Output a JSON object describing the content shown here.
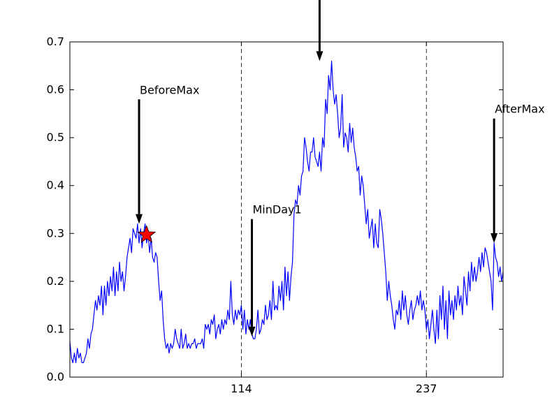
{
  "chart_data": {
    "type": "line",
    "title": "",
    "xlabel": "",
    "ylabel": "",
    "xlim": [
      0,
      288
    ],
    "ylim": [
      0,
      0.7
    ],
    "yticks": [
      "0.0",
      "0.1",
      "0.2",
      "0.3",
      "0.4",
      "0.5",
      "0.6",
      "0.7"
    ],
    "xticks": [
      {
        "value": 114,
        "label": "114"
      },
      {
        "value": 237,
        "label": "237"
      }
    ],
    "vlines": [
      114,
      237
    ],
    "grid": false,
    "series": [
      {
        "color": "#0000ff",
        "points": [
          [
            0,
            0.075
          ],
          [
            1,
            0.04
          ],
          [
            2,
            0.03
          ],
          [
            3,
            0.05
          ],
          [
            4,
            0.03
          ],
          [
            5,
            0.06
          ],
          [
            6,
            0.04
          ],
          [
            7,
            0.05
          ],
          [
            8,
            0.03
          ],
          [
            9,
            0.03
          ],
          [
            10,
            0.04
          ],
          [
            11,
            0.05
          ],
          [
            12,
            0.08
          ],
          [
            13,
            0.06
          ],
          [
            14,
            0.09
          ],
          [
            15,
            0.1
          ],
          [
            16,
            0.13
          ],
          [
            17,
            0.16
          ],
          [
            18,
            0.14
          ],
          [
            19,
            0.17
          ],
          [
            20,
            0.15
          ],
          [
            21,
            0.19
          ],
          [
            22,
            0.13
          ],
          [
            23,
            0.19
          ],
          [
            24,
            0.15
          ],
          [
            25,
            0.2
          ],
          [
            26,
            0.17
          ],
          [
            27,
            0.21
          ],
          [
            28,
            0.18
          ],
          [
            29,
            0.23
          ],
          [
            30,
            0.17
          ],
          [
            31,
            0.22
          ],
          [
            32,
            0.18
          ],
          [
            33,
            0.24
          ],
          [
            34,
            0.2
          ],
          [
            35,
            0.22
          ],
          [
            36,
            0.18
          ],
          [
            37,
            0.21
          ],
          [
            38,
            0.25
          ],
          [
            39,
            0.27
          ],
          [
            40,
            0.29
          ],
          [
            41,
            0.26
          ],
          [
            42,
            0.31
          ],
          [
            43,
            0.3
          ],
          [
            44,
            0.29
          ],
          [
            45,
            0.32
          ],
          [
            46,
            0.28
          ],
          [
            47,
            0.31
          ],
          [
            48,
            0.27
          ],
          [
            49,
            0.3
          ],
          [
            50,
            0.32
          ],
          [
            51,
            0.28
          ],
          [
            52,
            0.3
          ],
          [
            53,
            0.26
          ],
          [
            54,
            0.29
          ],
          [
            55,
            0.25
          ],
          [
            56,
            0.24
          ],
          [
            57,
            0.26
          ],
          [
            58,
            0.25
          ],
          [
            59,
            0.2
          ],
          [
            60,
            0.16
          ],
          [
            61,
            0.18
          ],
          [
            62,
            0.12
          ],
          [
            63,
            0.08
          ],
          [
            64,
            0.06
          ],
          [
            65,
            0.07
          ],
          [
            66,
            0.05
          ],
          [
            67,
            0.07
          ],
          [
            68,
            0.06
          ],
          [
            69,
            0.07
          ],
          [
            70,
            0.1
          ],
          [
            71,
            0.08
          ],
          [
            72,
            0.07
          ],
          [
            73,
            0.06
          ],
          [
            74,
            0.1
          ],
          [
            75,
            0.06
          ],
          [
            76,
            0.07
          ],
          [
            77,
            0.09
          ],
          [
            78,
            0.06
          ],
          [
            79,
            0.07
          ],
          [
            80,
            0.06
          ],
          [
            81,
            0.07
          ],
          [
            82,
            0.07
          ],
          [
            83,
            0.08
          ],
          [
            84,
            0.06
          ],
          [
            85,
            0.07
          ],
          [
            86,
            0.07
          ],
          [
            87,
            0.07
          ],
          [
            88,
            0.08
          ],
          [
            89,
            0.06
          ],
          [
            90,
            0.11
          ],
          [
            91,
            0.1
          ],
          [
            92,
            0.11
          ],
          [
            93,
            0.09
          ],
          [
            94,
            0.12
          ],
          [
            95,
            0.11
          ],
          [
            96,
            0.13
          ],
          [
            97,
            0.08
          ],
          [
            98,
            0.1
          ],
          [
            99,
            0.11
          ],
          [
            100,
            0.09
          ],
          [
            101,
            0.12
          ],
          [
            102,
            0.1
          ],
          [
            103,
            0.12
          ],
          [
            104,
            0.11
          ],
          [
            105,
            0.14
          ],
          [
            106,
            0.12
          ],
          [
            107,
            0.2
          ],
          [
            108,
            0.13
          ],
          [
            109,
            0.11
          ],
          [
            110,
            0.14
          ],
          [
            111,
            0.12
          ],
          [
            112,
            0.14
          ],
          [
            113,
            0.13
          ],
          [
            114,
            0.15
          ],
          [
            115,
            0.1
          ],
          [
            116,
            0.14
          ],
          [
            117,
            0.09
          ],
          [
            118,
            0.12
          ],
          [
            119,
            0.1
          ],
          [
            120,
            0.12
          ],
          [
            121,
            0.09
          ],
          [
            122,
            0.08
          ],
          [
            123,
            0.08
          ],
          [
            124,
            0.1
          ],
          [
            125,
            0.14
          ],
          [
            126,
            0.09
          ],
          [
            127,
            0.1
          ],
          [
            128,
            0.12
          ],
          [
            129,
            0.11
          ],
          [
            130,
            0.15
          ],
          [
            131,
            0.12
          ],
          [
            132,
            0.13
          ],
          [
            133,
            0.16
          ],
          [
            134,
            0.12
          ],
          [
            135,
            0.2
          ],
          [
            136,
            0.14
          ],
          [
            137,
            0.15
          ],
          [
            138,
            0.14
          ],
          [
            139,
            0.19
          ],
          [
            140,
            0.16
          ],
          [
            141,
            0.2
          ],
          [
            142,
            0.14
          ],
          [
            143,
            0.23
          ],
          [
            144,
            0.17
          ],
          [
            145,
            0.22
          ],
          [
            146,
            0.16
          ],
          [
            147,
            0.21
          ],
          [
            148,
            0.24
          ],
          [
            149,
            0.34
          ],
          [
            150,
            0.37
          ],
          [
            151,
            0.36
          ],
          [
            152,
            0.4
          ],
          [
            153,
            0.38
          ],
          [
            154,
            0.42
          ],
          [
            155,
            0.43
          ],
          [
            156,
            0.5
          ],
          [
            157,
            0.48
          ],
          [
            158,
            0.45
          ],
          [
            159,
            0.43
          ],
          [
            160,
            0.47
          ],
          [
            161,
            0.47
          ],
          [
            162,
            0.5
          ],
          [
            163,
            0.46
          ],
          [
            164,
            0.45
          ],
          [
            165,
            0.44
          ],
          [
            166,
            0.47
          ],
          [
            167,
            0.43
          ],
          [
            168,
            0.5
          ],
          [
            169,
            0.48
          ],
          [
            170,
            0.58
          ],
          [
            171,
            0.55
          ],
          [
            172,
            0.63
          ],
          [
            173,
            0.6
          ],
          [
            174,
            0.66
          ],
          [
            175,
            0.6
          ],
          [
            176,
            0.57
          ],
          [
            177,
            0.59
          ],
          [
            178,
            0.55
          ],
          [
            179,
            0.5
          ],
          [
            180,
            0.52
          ],
          [
            181,
            0.59
          ],
          [
            182,
            0.48
          ],
          [
            183,
            0.51
          ],
          [
            184,
            0.5
          ],
          [
            185,
            0.47
          ],
          [
            186,
            0.53
          ],
          [
            187,
            0.49
          ],
          [
            188,
            0.52
          ],
          [
            189,
            0.48
          ],
          [
            190,
            0.46
          ],
          [
            191,
            0.43
          ],
          [
            192,
            0.44
          ],
          [
            193,
            0.38
          ],
          [
            194,
            0.42
          ],
          [
            195,
            0.4
          ],
          [
            196,
            0.36
          ],
          [
            197,
            0.32
          ],
          [
            198,
            0.35
          ],
          [
            199,
            0.29
          ],
          [
            200,
            0.31
          ],
          [
            201,
            0.33
          ],
          [
            202,
            0.27
          ],
          [
            203,
            0.32
          ],
          [
            204,
            0.28
          ],
          [
            205,
            0.27
          ],
          [
            206,
            0.35
          ],
          [
            207,
            0.33
          ],
          [
            208,
            0.3
          ],
          [
            209,
            0.26
          ],
          [
            210,
            0.22
          ],
          [
            211,
            0.16
          ],
          [
            212,
            0.2
          ],
          [
            213,
            0.17
          ],
          [
            214,
            0.15
          ],
          [
            215,
            0.12
          ],
          [
            216,
            0.1
          ],
          [
            217,
            0.14
          ],
          [
            218,
            0.13
          ],
          [
            219,
            0.16
          ],
          [
            220,
            0.12
          ],
          [
            221,
            0.18
          ],
          [
            222,
            0.14
          ],
          [
            223,
            0.17
          ],
          [
            224,
            0.13
          ],
          [
            225,
            0.11
          ],
          [
            226,
            0.14
          ],
          [
            227,
            0.16
          ],
          [
            228,
            0.12
          ],
          [
            229,
            0.14
          ],
          [
            230,
            0.15
          ],
          [
            231,
            0.17
          ],
          [
            232,
            0.15
          ],
          [
            233,
            0.18
          ],
          [
            234,
            0.14
          ],
          [
            235,
            0.16
          ],
          [
            236,
            0.14
          ],
          [
            237,
            0.1
          ],
          [
            238,
            0.12
          ],
          [
            239,
            0.08
          ],
          [
            240,
            0.11
          ],
          [
            241,
            0.14
          ],
          [
            242,
            0.1
          ],
          [
            243,
            0.07
          ],
          [
            244,
            0.14
          ],
          [
            245,
            0.08
          ],
          [
            246,
            0.17
          ],
          [
            247,
            0.12
          ],
          [
            248,
            0.19
          ],
          [
            249,
            0.1
          ],
          [
            250,
            0.16
          ],
          [
            251,
            0.08
          ],
          [
            252,
            0.18
          ],
          [
            253,
            0.13
          ],
          [
            254,
            0.16
          ],
          [
            255,
            0.12
          ],
          [
            256,
            0.17
          ],
          [
            257,
            0.14
          ],
          [
            258,
            0.19
          ],
          [
            259,
            0.15
          ],
          [
            260,
            0.17
          ],
          [
            261,
            0.13
          ],
          [
            262,
            0.21
          ],
          [
            263,
            0.18
          ],
          [
            264,
            0.15
          ],
          [
            265,
            0.22
          ],
          [
            266,
            0.18
          ],
          [
            267,
            0.24
          ],
          [
            268,
            0.2
          ],
          [
            269,
            0.23
          ],
          [
            270,
            0.2
          ],
          [
            271,
            0.22
          ],
          [
            272,
            0.25
          ],
          [
            273,
            0.22
          ],
          [
            274,
            0.26
          ],
          [
            275,
            0.23
          ],
          [
            276,
            0.27
          ],
          [
            277,
            0.26
          ],
          [
            278,
            0.24
          ],
          [
            279,
            0.22
          ],
          [
            280,
            0.2
          ],
          [
            281,
            0.14
          ],
          [
            282,
            0.28
          ],
          [
            283,
            0.25
          ],
          [
            284,
            0.24
          ],
          [
            285,
            0.21
          ],
          [
            286,
            0.23
          ],
          [
            287,
            0.2
          ],
          [
            288,
            0.22
          ]
        ]
      }
    ],
    "marker": {
      "symbol": "star",
      "x": 51,
      "y": 0.297,
      "color": "#ff0000"
    },
    "annotations": [
      {
        "label": "BeforeMax",
        "x": 46,
        "y": 0.32,
        "label_x": 46,
        "label_y": 0.58
      },
      {
        "label": "MinDay1",
        "x": 121,
        "y": 0.085,
        "label_x": 121,
        "label_y": 0.33
      },
      {
        "label": "",
        "x": 166,
        "y": 0.66,
        "label_x": 166,
        "label_y": 0.79
      },
      {
        "label": "AfterMax",
        "x": 282,
        "y": 0.28,
        "label_x": 282,
        "label_y": 0.54
      }
    ]
  }
}
